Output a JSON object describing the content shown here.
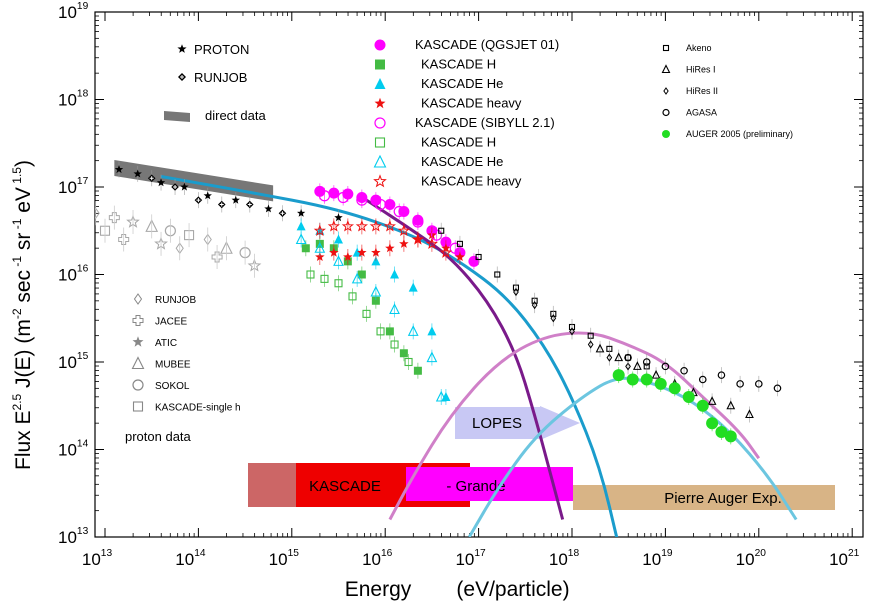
{
  "chart_data": {
    "type": "scatter",
    "xscale": "log",
    "yscale": "log",
    "xlim_exp": [
      12.8,
      21
    ],
    "ylim_exp": [
      13,
      19
    ],
    "xlabel": "Energy",
    "xlabel_units": "(eV/particle)",
    "ylabel_main": "Flux E",
    "ylabel_exp": "2.5",
    "ylabel_func": "J(E) (m",
    "ylabel_exp2": "-2",
    "ylabel_sec": "sec",
    "ylabel_exp3": "-1",
    "ylabel_sr": "sr",
    "ylabel_exp4": "-1",
    "ylabel_ev": "eV",
    "ylabel_exp5": "1.5",
    "ylabel_close": ")",
    "x_ticks": [
      {
        "base": "10",
        "exp": "13",
        "v": 13
      },
      {
        "base": "10",
        "exp": "14",
        "v": 14
      },
      {
        "base": "10",
        "exp": "15",
        "v": 15
      },
      {
        "base": "10",
        "exp": "16",
        "v": 16
      },
      {
        "base": "10",
        "exp": "17",
        "v": 17
      },
      {
        "base": "10",
        "exp": "18",
        "v": 18
      },
      {
        "base": "10",
        "exp": "19",
        "v": 19
      },
      {
        "base": "10",
        "exp": "20",
        "v": 20
      },
      {
        "base": "10",
        "exp": "21",
        "v": 21
      }
    ],
    "y_ticks": [
      {
        "base": "10",
        "exp": "13",
        "v": 13
      },
      {
        "base": "10",
        "exp": "14",
        "v": 14
      },
      {
        "base": "10",
        "exp": "15",
        "v": 15
      },
      {
        "base": "10",
        "exp": "16",
        "v": 16
      },
      {
        "base": "10",
        "exp": "17",
        "v": 17
      },
      {
        "base": "10",
        "exp": "18",
        "v": 18
      },
      {
        "base": "10",
        "exp": "19",
        "v": 19
      }
    ],
    "legend_top_left": [
      {
        "label": "PROTON",
        "marker": "star"
      },
      {
        "label": "RUNJOB",
        "marker": "diamond-plus"
      },
      {
        "label": "direct data",
        "marker": "gray-band"
      }
    ],
    "legend_kascade": [
      {
        "label": "KASCADE (QGSJET 01)",
        "marker": "circle",
        "fill": "#ff00ff",
        "filled": true
      },
      {
        "label": "KASCADE H",
        "marker": "square",
        "fill": "#44bb44",
        "filled": true
      },
      {
        "label": "KASCADE He",
        "marker": "triangle",
        "fill": "#00ccee",
        "filled": true
      },
      {
        "label": "KASCADE heavy",
        "marker": "star",
        "fill": "#ee1111",
        "filled": true
      },
      {
        "label": "KASCADE (SIBYLL 2.1)",
        "marker": "circle",
        "fill": "#ff00ff",
        "filled": false
      },
      {
        "label": "KASCADE H",
        "marker": "square",
        "fill": "#44bb44",
        "filled": false
      },
      {
        "label": "KASCADE He",
        "marker": "triangle",
        "fill": "#00ccee",
        "filled": false
      },
      {
        "label": "KASCADE heavy",
        "marker": "star",
        "fill": "#ee1111",
        "filled": false
      }
    ],
    "legend_right": [
      {
        "label": "Akeno",
        "marker": "square"
      },
      {
        "label": "HiRes I",
        "marker": "triangle"
      },
      {
        "label": "HiRes II",
        "marker": "diamond"
      },
      {
        "label": "AGASA",
        "marker": "circle"
      },
      {
        "label": "AUGER 2005 (preliminary)",
        "marker": "green-dot"
      }
    ],
    "legend_proton": [
      {
        "label": "RUNJOB",
        "marker": "diamond"
      },
      {
        "label": "JACEE",
        "marker": "cross"
      },
      {
        "label": "ATIC",
        "marker": "star"
      },
      {
        "label": "MUBEE",
        "marker": "triangle"
      },
      {
        "label": "SOKOL",
        "marker": "circle"
      },
      {
        "label": "KASCADE-single h",
        "marker": "square"
      }
    ],
    "proton_data_label": "proton data",
    "experiments": [
      {
        "label": "LOPES",
        "x0": 16.85,
        "x1": 18.0,
        "y": 14.28,
        "color": "#c8c8f4"
      },
      {
        "label": "KASCADE",
        "x0": 14.4,
        "x1": 16.95,
        "y": 13.39,
        "color": "#ee0000"
      },
      {
        "label": "- Grande",
        "x0": 16.2,
        "x1": 18.0,
        "y": 13.5,
        "color": "#ff00ff"
      },
      {
        "label": "Pierre Auger Exp.",
        "x0": 18.0,
        "x1": 20.95,
        "y": 13.39,
        "color": "#d8b486"
      }
    ],
    "series": [
      {
        "name": "direct data band",
        "points": [
          [
            13.1,
            17.24
          ],
          [
            14.8,
            16.95
          ]
        ]
      },
      {
        "name": "PROTON",
        "marker": "star",
        "points": [
          [
            13.15,
            17.2
          ],
          [
            13.35,
            17.15
          ],
          [
            13.6,
            17.05
          ],
          [
            13.85,
            17.0
          ],
          [
            14.1,
            16.9
          ],
          [
            14.4,
            16.85
          ],
          [
            14.75,
            16.75
          ],
          [
            15.1,
            16.7
          ],
          [
            15.5,
            16.65
          ]
        ]
      },
      {
        "name": "RUNJOB (all)",
        "marker": "diamond-plus",
        "points": [
          [
            13.5,
            17.1
          ],
          [
            13.75,
            17.0
          ],
          [
            14.0,
            16.85
          ],
          [
            14.25,
            16.8
          ],
          [
            14.55,
            16.8
          ],
          [
            14.9,
            16.7
          ]
        ]
      },
      {
        "name": "KASCADE (QGSJET 01)",
        "marker": "circle",
        "points": [
          [
            15.3,
            16.95
          ],
          [
            15.45,
            16.93
          ],
          [
            15.6,
            16.92
          ],
          [
            15.75,
            16.88
          ],
          [
            15.9,
            16.85
          ],
          [
            16.05,
            16.8
          ],
          [
            16.2,
            16.72
          ],
          [
            16.35,
            16.62
          ],
          [
            16.5,
            16.5
          ],
          [
            16.65,
            16.37
          ],
          [
            16.8,
            16.25
          ],
          [
            16.95,
            16.15
          ]
        ]
      },
      {
        "name": "KASCADE H (QGSJET)",
        "marker": "square",
        "points": [
          [
            15.15,
            16.3
          ],
          [
            15.3,
            16.35
          ],
          [
            15.45,
            16.3
          ],
          [
            15.6,
            16.15
          ],
          [
            15.75,
            16.0
          ],
          [
            15.9,
            15.7
          ],
          [
            16.05,
            15.35
          ],
          [
            16.2,
            15.1
          ],
          [
            16.35,
            14.9
          ]
        ]
      },
      {
        "name": "KASCADE He (QGSJET)",
        "marker": "triangle",
        "points": [
          [
            15.1,
            16.55
          ],
          [
            15.3,
            16.5
          ],
          [
            15.5,
            16.4
          ],
          [
            15.7,
            16.25
          ],
          [
            15.9,
            16.15
          ],
          [
            16.1,
            16.0
          ],
          [
            16.3,
            15.85
          ],
          [
            16.5,
            15.35
          ],
          [
            16.65,
            14.6
          ]
        ]
      },
      {
        "name": "KASCADE heavy (QGSJET)",
        "marker": "star",
        "points": [
          [
            15.3,
            16.2
          ],
          [
            15.45,
            16.25
          ],
          [
            15.6,
            16.2
          ],
          [
            15.75,
            16.25
          ],
          [
            15.9,
            16.25
          ],
          [
            16.05,
            16.3
          ],
          [
            16.2,
            16.35
          ],
          [
            16.35,
            16.4
          ],
          [
            16.5,
            16.45
          ],
          [
            16.65,
            16.3
          ],
          [
            16.8,
            16.2
          ]
        ]
      },
      {
        "name": "KASCADE (SIBYLL 2.1)",
        "marker": "circle-open",
        "points": [
          [
            15.35,
            16.9
          ],
          [
            15.55,
            16.88
          ],
          [
            15.75,
            16.85
          ],
          [
            15.95,
            16.8
          ],
          [
            16.15,
            16.72
          ],
          [
            16.35,
            16.6
          ],
          [
            16.55,
            16.45
          ],
          [
            16.75,
            16.3
          ]
        ]
      },
      {
        "name": "KASCADE H (SIBYLL)",
        "marker": "square-open",
        "points": [
          [
            15.2,
            16.0
          ],
          [
            15.35,
            15.95
          ],
          [
            15.5,
            15.9
          ],
          [
            15.65,
            15.75
          ],
          [
            15.8,
            15.55
          ],
          [
            15.95,
            15.35
          ],
          [
            16.1,
            15.2
          ],
          [
            16.25,
            15.0
          ]
        ]
      },
      {
        "name": "KASCADE He (SIBYLL)",
        "marker": "triangle-open",
        "points": [
          [
            15.1,
            16.4
          ],
          [
            15.3,
            16.3
          ],
          [
            15.5,
            16.15
          ],
          [
            15.7,
            15.95
          ],
          [
            15.9,
            15.8
          ],
          [
            16.1,
            15.6
          ],
          [
            16.3,
            15.35
          ],
          [
            16.5,
            15.05
          ],
          [
            16.6,
            14.6
          ]
        ]
      },
      {
        "name": "KASCADE heavy (SIBYLL)",
        "marker": "star-open",
        "points": [
          [
            15.3,
            16.5
          ],
          [
            15.45,
            16.55
          ],
          [
            15.6,
            16.55
          ],
          [
            15.75,
            16.55
          ],
          [
            15.9,
            16.55
          ],
          [
            16.05,
            16.55
          ],
          [
            16.2,
            16.5
          ],
          [
            16.35,
            16.4
          ],
          [
            16.5,
            16.35
          ],
          [
            16.65,
            16.25
          ]
        ]
      },
      {
        "name": "Akeno",
        "marker": "square-open",
        "points": [
          [
            16.6,
            16.5
          ],
          [
            16.8,
            16.35
          ],
          [
            17.0,
            16.2
          ],
          [
            17.2,
            16.0
          ],
          [
            17.4,
            15.85
          ],
          [
            17.6,
            15.7
          ],
          [
            17.8,
            15.55
          ],
          [
            18.0,
            15.4
          ],
          [
            18.2,
            15.3
          ],
          [
            18.4,
            15.15
          ],
          [
            18.6,
            15.05
          ],
          [
            18.8,
            14.95
          ]
        ]
      },
      {
        "name": "HiRes I",
        "marker": "triangle-open",
        "points": [
          [
            18.3,
            15.15
          ],
          [
            18.5,
            15.05
          ],
          [
            18.7,
            14.95
          ],
          [
            18.9,
            14.85
          ],
          [
            19.1,
            14.75
          ],
          [
            19.3,
            14.65
          ],
          [
            19.5,
            14.55
          ],
          [
            19.7,
            14.5
          ],
          [
            19.9,
            14.4
          ]
        ]
      },
      {
        "name": "HiRes II",
        "marker": "diamond",
        "points": [
          [
            17.4,
            15.8
          ],
          [
            17.6,
            15.65
          ],
          [
            17.8,
            15.5
          ],
          [
            18.0,
            15.35
          ],
          [
            18.2,
            15.2
          ],
          [
            18.4,
            15.05
          ],
          [
            18.6,
            14.95
          ]
        ]
      },
      {
        "name": "AGASA",
        "marker": "circle-open",
        "points": [
          [
            18.6,
            15.05
          ],
          [
            18.8,
            15.0
          ],
          [
            19.0,
            14.95
          ],
          [
            19.2,
            14.9
          ],
          [
            19.4,
            14.8
          ],
          [
            19.6,
            14.85
          ],
          [
            19.8,
            14.75
          ],
          [
            20.0,
            14.75
          ],
          [
            20.2,
            14.7
          ]
        ]
      },
      {
        "name": "AUGER 2005",
        "marker": "green-dot",
        "points": [
          [
            18.5,
            14.85
          ],
          [
            18.65,
            14.8
          ],
          [
            18.8,
            14.8
          ],
          [
            18.95,
            14.75
          ],
          [
            19.1,
            14.7
          ],
          [
            19.25,
            14.6
          ],
          [
            19.4,
            14.5
          ],
          [
            19.5,
            14.3
          ],
          [
            19.6,
            14.2
          ],
          [
            19.7,
            14.15
          ]
        ]
      }
    ],
    "curves": [
      {
        "name": "total flux (blue)",
        "color": "#1a9ccc",
        "points": [
          [
            13.6,
            17.12
          ],
          [
            14.5,
            16.95
          ],
          [
            15.5,
            16.75
          ],
          [
            16.3,
            16.45
          ],
          [
            16.8,
            16.15
          ],
          [
            17.3,
            15.75
          ],
          [
            17.7,
            15.2
          ],
          [
            18.0,
            14.6
          ],
          [
            18.3,
            13.8
          ],
          [
            18.5,
            12.9
          ]
        ]
      },
      {
        "name": "galactic (purple)",
        "color": "#7a1a8a",
        "points": [
          [
            15.8,
            16.85
          ],
          [
            16.3,
            16.5
          ],
          [
            16.7,
            16.2
          ],
          [
            17.1,
            15.7
          ],
          [
            17.4,
            15.1
          ],
          [
            17.6,
            14.4
          ],
          [
            17.8,
            13.6
          ],
          [
            17.9,
            13.2
          ]
        ]
      },
      {
        "name": "extra-galactic 1 (pink)",
        "color": "#d080c8",
        "points": [
          [
            16.05,
            13.2
          ],
          [
            16.3,
            13.7
          ],
          [
            16.7,
            14.4
          ],
          [
            17.2,
            15.0
          ],
          [
            17.7,
            15.3
          ],
          [
            18.2,
            15.35
          ],
          [
            18.6,
            15.2
          ],
          [
            19.0,
            15.0
          ],
          [
            19.4,
            14.6
          ],
          [
            19.8,
            14.2
          ],
          [
            20.0,
            13.9
          ]
        ]
      },
      {
        "name": "extra-galactic 2 (light blue)",
        "color": "#6cc6e0",
        "points": [
          [
            16.9,
            13.0
          ],
          [
            17.2,
            13.55
          ],
          [
            17.6,
            14.15
          ],
          [
            18.1,
            14.6
          ],
          [
            18.5,
            14.85
          ],
          [
            18.9,
            14.75
          ],
          [
            19.3,
            14.55
          ],
          [
            19.7,
            14.2
          ],
          [
            20.1,
            13.7
          ],
          [
            20.4,
            13.2
          ]
        ]
      }
    ],
    "gray_proton_points": [
      [
        12.9,
        16.7
      ],
      [
        13.1,
        16.65
      ],
      [
        13.3,
        16.6
      ],
      [
        13.5,
        16.55
      ],
      [
        13.7,
        16.5
      ],
      [
        13.9,
        16.45
      ],
      [
        14.1,
        16.4
      ],
      [
        13.2,
        16.4
      ],
      [
        13.6,
        16.35
      ],
      [
        14.3,
        16.3
      ],
      [
        14.5,
        16.25
      ],
      [
        13.0,
        16.5
      ],
      [
        13.8,
        16.3
      ],
      [
        14.2,
        16.2
      ],
      [
        14.6,
        16.1
      ]
    ]
  }
}
